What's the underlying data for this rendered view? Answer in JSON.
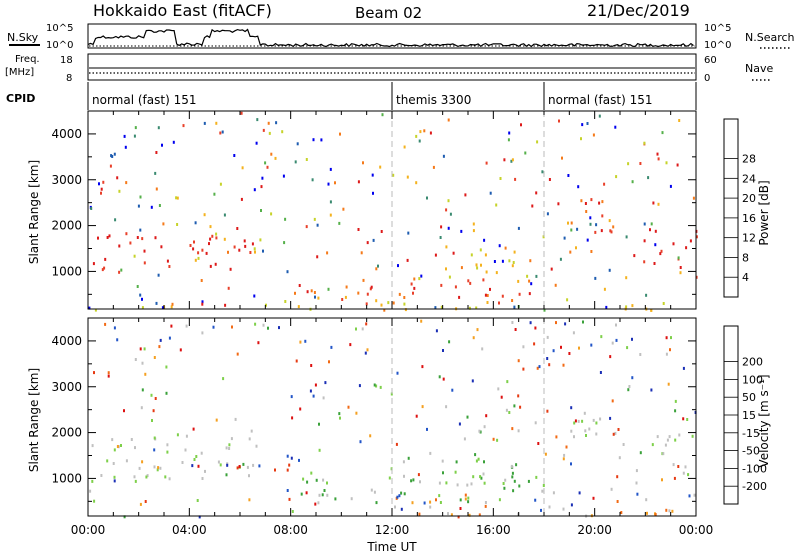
{
  "header": {
    "station": "Hokkaido East (fitACF)",
    "beam": "Beam 02",
    "date": "21/Dec/2019"
  },
  "panels": {
    "nsky_label": "N.Sky",
    "nsearch_label": "N.Search",
    "freq_label_line1": "Freq.",
    "freq_label_line2": "[MHz]",
    "nave_label": "Nave",
    "cpid_label": "CPID",
    "nsky_ticks": [
      "10^5",
      "10^0"
    ],
    "nsearch_ticks": [
      "10^5",
      "10^0"
    ],
    "freq_ticks": [
      "18",
      "8"
    ],
    "nave_ticks": [
      "60",
      "0"
    ]
  },
  "cpid_segments": [
    {
      "label": "normal (fast) 151",
      "start_h": 0
    },
    {
      "label": "themis 3300",
      "start_h": 12
    },
    {
      "label": "normal (fast) 151",
      "start_h": 18
    }
  ],
  "colors": {
    "power_scale": [
      "#0000ee",
      "#1e5cb0",
      "#3a8a70",
      "#55b04a",
      "#c6d32a",
      "#f4b21e",
      "#f57a1a",
      "#e8402a",
      "#dd1a1a"
    ],
    "velocity_scale": [
      "#1a2fb5",
      "#2255c8",
      "#3aa13a",
      "#7ed04a",
      "#c0c0c0",
      "#c0c0c0",
      "#f4a020",
      "#f26a14",
      "#e63a12",
      "#dd1010"
    ]
  },
  "chart_data": [
    {
      "type": "heatmap",
      "title": "Power",
      "xlabel": "Time UT",
      "ylabel": "Slant Range [km]",
      "xlim": [
        0,
        24
      ],
      "ylim": [
        180,
        4500
      ],
      "x_ticks": [
        "00:00",
        "04:00",
        "08:00",
        "12:00",
        "16:00",
        "20:00",
        "00:00"
      ],
      "y_ticks": [
        1000,
        2000,
        3000,
        4000
      ],
      "colorbar_label": "Power [dB]",
      "colorbar_ticks": [
        "4",
        "8",
        "12",
        "16",
        "20",
        "24",
        "28"
      ],
      "regions": [
        {
          "t": [
            0.1,
            2.3
          ],
          "r": [
            950,
            1950
          ],
          "level": 8
        },
        {
          "t": [
            2.6,
            4.8
          ],
          "r": [
            1100,
            1900
          ],
          "level": 8
        },
        {
          "t": [
            4.8,
            6.5
          ],
          "r": [
            1050,
            1950
          ],
          "level": 7
        },
        {
          "t": [
            6.5,
            7.2
          ],
          "r": [
            1500,
            2500
          ],
          "level": 3
        },
        {
          "t": [
            8.0,
            18.0
          ],
          "r": [
            500,
            900
          ],
          "level": 7
        },
        {
          "t": [
            9.0,
            17.0
          ],
          "r": [
            300,
            500
          ],
          "level": 6
        },
        {
          "t": [
            14.0,
            17.5
          ],
          "r": [
            800,
            1600
          ],
          "level": 5
        },
        {
          "t": [
            19.0,
            21.0
          ],
          "r": [
            1800,
            2700
          ],
          "level": 7
        },
        {
          "t": [
            21.5,
            24.0
          ],
          "r": [
            1100,
            2000
          ],
          "level": 8
        },
        {
          "t": [
            0.0,
            24.0
          ],
          "r": [
            180,
            300
          ],
          "level": 4
        }
      ]
    },
    {
      "type": "heatmap",
      "title": "Velocity",
      "xlabel": "Time UT",
      "ylabel": "Slant Range [km]",
      "xlim": [
        0,
        24
      ],
      "ylim": [
        180,
        4500
      ],
      "x_ticks": [
        "00:00",
        "04:00",
        "08:00",
        "12:00",
        "16:00",
        "20:00",
        "00:00"
      ],
      "y_ticks": [
        1000,
        2000,
        3000,
        4000
      ],
      "colorbar_label": "Velocity [m s⁻¹]",
      "colorbar_ticks": [
        "-200",
        "-100",
        "-50",
        "-15",
        "15",
        "50",
        "100",
        "200"
      ],
      "regions": [
        {
          "t": [
            0.1,
            6.8
          ],
          "r": [
            950,
            2000
          ],
          "level": 4
        },
        {
          "t": [
            8.0,
            18.0
          ],
          "r": [
            500,
            1100
          ],
          "level": 3
        },
        {
          "t": [
            12.0,
            17.0
          ],
          "r": [
            900,
            1600
          ],
          "level": 3
        },
        {
          "t": [
            12.0,
            15.0
          ],
          "r": [
            300,
            600
          ],
          "level": 6
        },
        {
          "t": [
            19.0,
            21.0
          ],
          "r": [
            1800,
            2700
          ],
          "level": 4
        },
        {
          "t": [
            21.5,
            24.0
          ],
          "r": [
            1100,
            2000
          ],
          "level": 4
        },
        {
          "t": [
            14.0,
            24.0
          ],
          "r": [
            180,
            350
          ],
          "level": 6
        }
      ]
    }
  ]
}
